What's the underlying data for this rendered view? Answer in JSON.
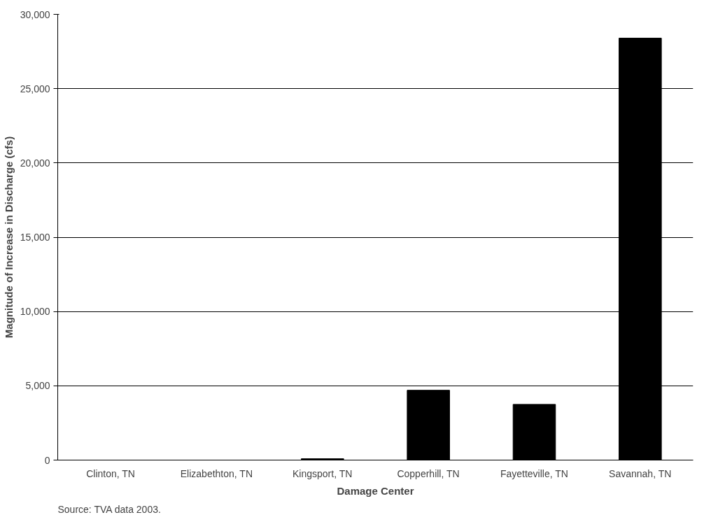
{
  "chart_data": {
    "type": "bar",
    "xlabel": "Damage Center",
    "ylabel": "Magnitude of Increase in Discharge (cfs)",
    "categories": [
      "Clinton, TN",
      "Elizabethton, TN",
      "Kingsport, TN",
      "Copperhill, TN",
      "Fayetteville, TN",
      "Savannah, TN"
    ],
    "values": [
      0,
      0,
      90,
      4700,
      3750,
      28400
    ],
    "color": "#000000",
    "ylim": [
      0,
      30000
    ],
    "yticks": [
      {
        "value": 0,
        "label": "0"
      },
      {
        "value": 5000,
        "label": "5,000"
      },
      {
        "value": 10000,
        "label": "10,000"
      },
      {
        "value": 15000,
        "label": "15,000"
      },
      {
        "value": 20000,
        "label": "20,000"
      },
      {
        "value": 25000,
        "label": "25,000"
      },
      {
        "value": 30000,
        "label": "30,000"
      }
    ],
    "grid": "y",
    "annotations": [
      "Source:  TVA data 2003."
    ]
  }
}
